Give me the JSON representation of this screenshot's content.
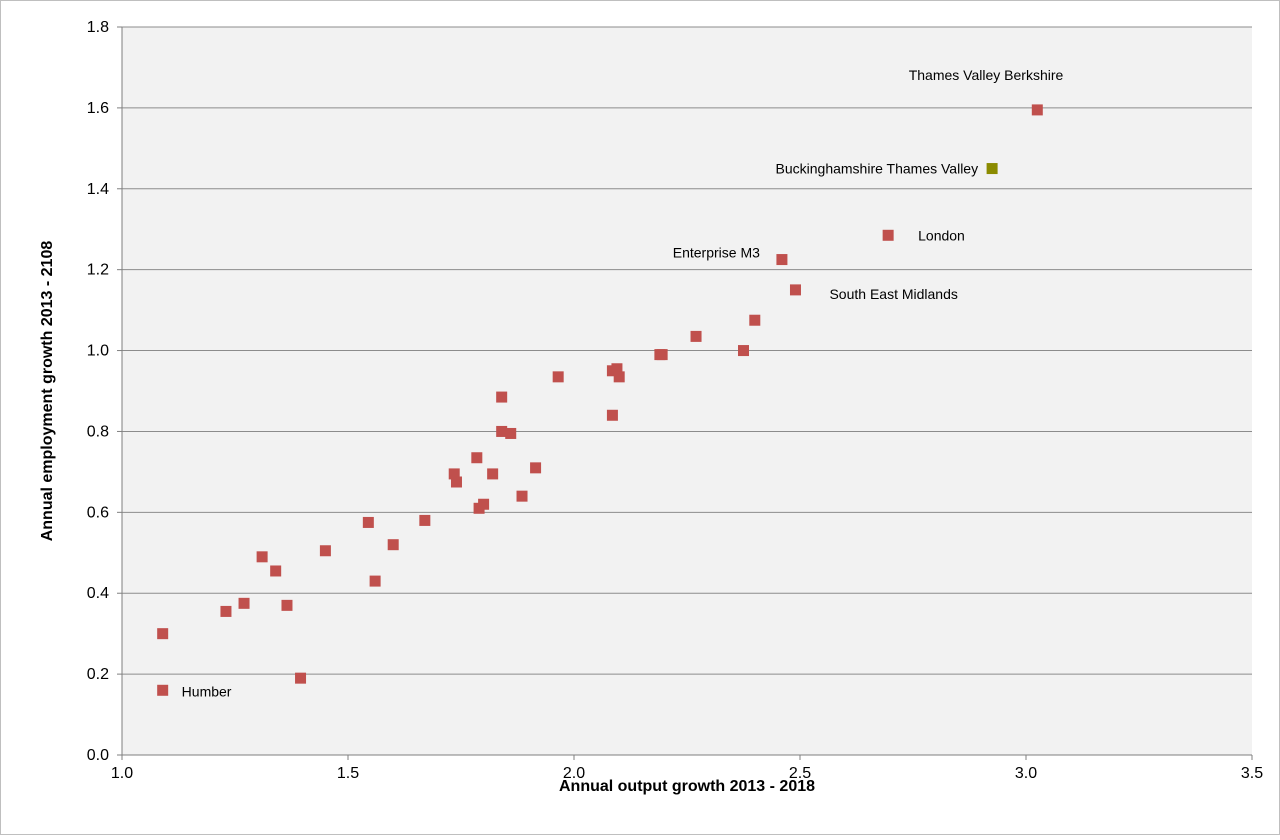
{
  "chart_data": {
    "type": "scatter",
    "title": "",
    "xlabel": "Annual output growth 2013 - 2018",
    "ylabel": "Annual  employment growth 2013 - 2108",
    "xlim": [
      1.0,
      3.5
    ],
    "ylim": [
      0.0,
      1.8
    ],
    "x_ticks": [
      "1.0",
      "1.5",
      "2.0",
      "2.5",
      "3.0",
      "3.5"
    ],
    "y_ticks": [
      "0.0",
      "0.2",
      "0.4",
      "0.6",
      "0.8",
      "1.0",
      "1.2",
      "1.4",
      "1.6",
      "1.8"
    ],
    "grid": "horizontal",
    "legend": "none",
    "colors": {
      "points": "#c0504d",
      "highlight": "#8b8b00",
      "plot_background": "#f2f2f2",
      "gridline": "#8c8c8c"
    },
    "points": [
      {
        "x": 1.09,
        "y": 0.16,
        "label": "Humber"
      },
      {
        "x": 1.09,
        "y": 0.3
      },
      {
        "x": 1.23,
        "y": 0.355
      },
      {
        "x": 1.27,
        "y": 0.375
      },
      {
        "x": 1.31,
        "y": 0.49
      },
      {
        "x": 1.34,
        "y": 0.455
      },
      {
        "x": 1.365,
        "y": 0.37
      },
      {
        "x": 1.395,
        "y": 0.19
      },
      {
        "x": 1.45,
        "y": 0.505
      },
      {
        "x": 1.545,
        "y": 0.575
      },
      {
        "x": 1.56,
        "y": 0.43
      },
      {
        "x": 1.6,
        "y": 0.52
      },
      {
        "x": 1.67,
        "y": 0.58
      },
      {
        "x": 1.735,
        "y": 0.695
      },
      {
        "x": 1.74,
        "y": 0.675
      },
      {
        "x": 1.785,
        "y": 0.735
      },
      {
        "x": 1.79,
        "y": 0.61
      },
      {
        "x": 1.8,
        "y": 0.62
      },
      {
        "x": 1.82,
        "y": 0.695
      },
      {
        "x": 1.84,
        "y": 0.885
      },
      {
        "x": 1.84,
        "y": 0.8
      },
      {
        "x": 1.86,
        "y": 0.795
      },
      {
        "x": 1.885,
        "y": 0.64
      },
      {
        "x": 1.915,
        "y": 0.71
      },
      {
        "x": 1.965,
        "y": 0.935
      },
      {
        "x": 2.085,
        "y": 0.84
      },
      {
        "x": 2.085,
        "y": 0.95
      },
      {
        "x": 2.095,
        "y": 0.955
      },
      {
        "x": 2.1,
        "y": 0.935
      },
      {
        "x": 2.19,
        "y": 0.99
      },
      {
        "x": 2.195,
        "y": 0.99
      },
      {
        "x": 2.27,
        "y": 1.035
      },
      {
        "x": 2.375,
        "y": 1.0
      },
      {
        "x": 2.4,
        "y": 1.075
      },
      {
        "x": 2.46,
        "y": 1.225,
        "label": "Enterprise M3"
      },
      {
        "x": 2.49,
        "y": 1.15,
        "label": "South East Midlands"
      },
      {
        "x": 2.695,
        "y": 1.285,
        "label": "London"
      },
      {
        "x": 3.025,
        "y": 1.595,
        "label": "Thames Valley Berkshire"
      }
    ],
    "highlight_points": [
      {
        "x": 2.925,
        "y": 1.45,
        "label": "Buckinghamshire Thames Valley"
      }
    ]
  }
}
